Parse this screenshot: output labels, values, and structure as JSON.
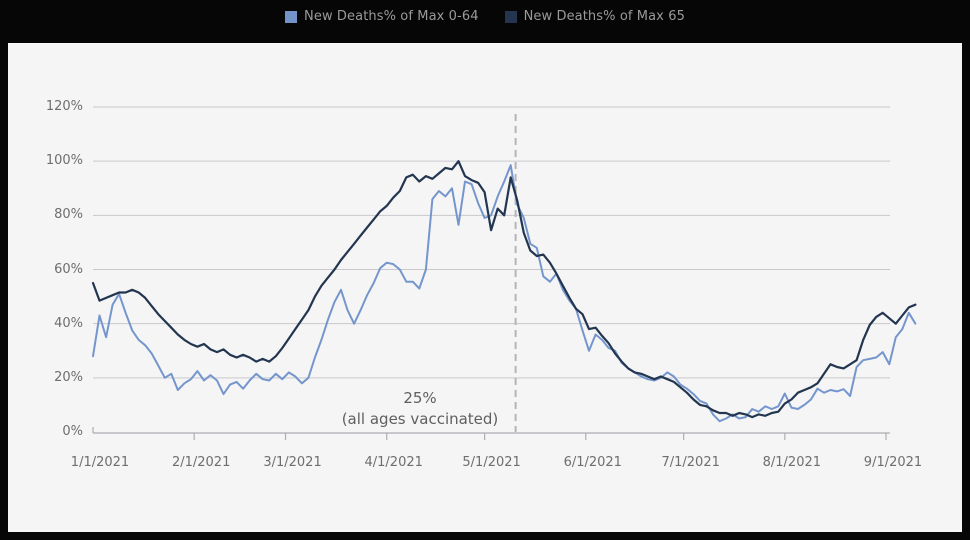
{
  "legend": {
    "items": [
      {
        "label": "New Deaths% of Max 0-64",
        "color": "#7394c9"
      },
      {
        "label": "New Deaths% of Max 65",
        "color": "#26354f"
      }
    ]
  },
  "chart_data": {
    "type": "line",
    "title": "",
    "xlabel": "",
    "ylabel": "",
    "grid": true,
    "legend_position": "top",
    "ylim": [
      0,
      120
    ],
    "y_ticks": [
      0,
      20,
      40,
      60,
      80,
      100,
      120
    ],
    "y_tick_labels": [
      "0%",
      "20%",
      "40%",
      "60%",
      "80%",
      "100%",
      "120%"
    ],
    "x_unit": "days since 1/1/2021",
    "x_tick_days": [
      0,
      31,
      59,
      90,
      120,
      151,
      181,
      212,
      243
    ],
    "x_tick_labels": [
      "1/1/2021",
      "2/1/2021",
      "3/1/2021",
      "4/1/2021",
      "5/1/2021",
      "6/1/2021",
      "7/1/2021",
      "8/1/2021",
      "9/1/2021"
    ],
    "annotation": {
      "line1": "25%",
      "line2": "(all ages vaccinated)",
      "day": 129.5
    },
    "day_start": 0,
    "day_step": 2,
    "series": [
      {
        "name": "New Deaths% of Max 0-64",
        "color": "#7596cc",
        "values": [
          28,
          43,
          35,
          47,
          51,
          44,
          37.5,
          34,
          32,
          29,
          24.5,
          20,
          21.5,
          15.5,
          18,
          19.5,
          22.5,
          19,
          21,
          19,
          14,
          17.5,
          18.5,
          16,
          19,
          21.5,
          19.5,
          19,
          21.5,
          19.5,
          22,
          20.5,
          18,
          20,
          27.5,
          34,
          41.5,
          48,
          52.5,
          45,
          40,
          45,
          50.5,
          55,
          60.5,
          62.5,
          62,
          60,
          55.5,
          55.5,
          53,
          60,
          86,
          89,
          87,
          90,
          76.5,
          92.5,
          91.5,
          84.5,
          79,
          80,
          87,
          92.5,
          98.5,
          84,
          79,
          69.5,
          68,
          57.5,
          55.5,
          58.5,
          52.5,
          48.5,
          45.5,
          37.5,
          30,
          36,
          34,
          31,
          30,
          25.5,
          23.5,
          22,
          20.5,
          19.5,
          19,
          20,
          22,
          20.5,
          17.5,
          16,
          14,
          11.5,
          10.5,
          6.5,
          4,
          5,
          6.5,
          5,
          5.5,
          8.5,
          7.5,
          9.5,
          8.5,
          9.5,
          14.2,
          9,
          8.5,
          10,
          12,
          16,
          14.5,
          15.5,
          15,
          15.8,
          13.3,
          24,
          26.5,
          27,
          27.5,
          29.5,
          25,
          35,
          38,
          44,
          40
        ]
      },
      {
        "name": "New Deaths% of Max 65",
        "color": "#233650",
        "values": [
          55,
          48.5,
          49.5,
          50.5,
          51.5,
          51.5,
          52.5,
          51.5,
          49.5,
          46.5,
          43.5,
          41,
          38.5,
          36,
          34,
          32.5,
          31.5,
          32.5,
          30.5,
          29.5,
          30.5,
          28.5,
          27.5,
          28.5,
          27.5,
          26,
          27,
          26,
          28,
          31,
          34.5,
          38,
          41.5,
          45,
          50,
          54,
          57,
          60,
          63.5,
          66.5,
          69.5,
          72.5,
          75.5,
          78.5,
          81.5,
          83.5,
          86.5,
          89,
          94,
          95,
          92.5,
          94.5,
          93.5,
          95.5,
          97.5,
          97,
          100,
          94.5,
          93,
          92,
          88.5,
          74.5,
          82.5,
          80,
          94,
          85.5,
          73.5,
          67,
          65,
          65.5,
          62.5,
          58.5,
          54,
          49.5,
          45.5,
          43.5,
          38,
          38.5,
          35.5,
          32.8,
          29,
          26,
          23.5,
          22,
          21.5,
          20.5,
          19.5,
          20.5,
          19.5,
          18.5,
          16.5,
          14.5,
          12,
          10,
          9.5,
          8,
          7,
          7,
          6,
          7,
          6.5,
          5.5,
          6.5,
          6,
          7,
          7.5,
          10.5,
          12,
          14.5,
          15.5,
          16.5,
          18,
          21.5,
          25,
          24,
          23.5,
          25,
          26.5,
          34,
          39.5,
          42.5,
          44,
          42,
          40,
          43,
          46,
          47
        ]
      }
    ],
    "colors": {
      "background_frame": "#060606",
      "panel": "#f5f5f6",
      "gridline": "#c9c9cd",
      "axis": "#aeaeb2",
      "dashed_marker": "#b4b4b8",
      "tick_text": "#6e6e6e",
      "annotation_text": "#5f5f5f",
      "legend_text": "#9a9a9a"
    }
  }
}
